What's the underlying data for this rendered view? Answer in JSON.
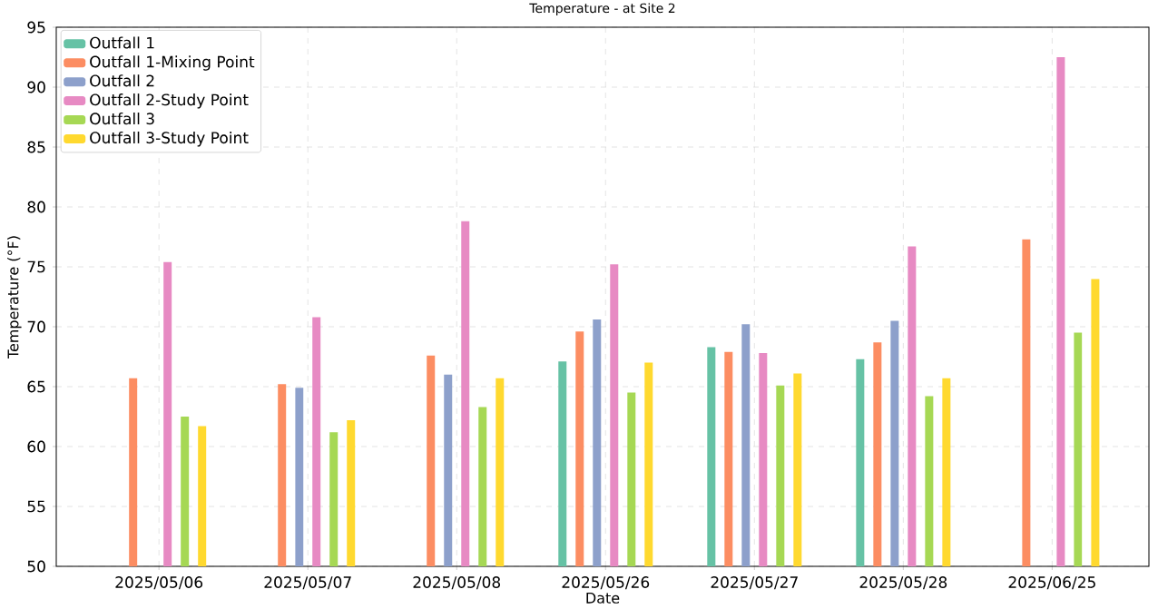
{
  "chart_data": {
    "type": "bar",
    "title": "Temperature - at Site 2",
    "xlabel": "Date",
    "ylabel": "Temperature (°F)",
    "categories": [
      "2025/05/06",
      "2025/05/07",
      "2025/05/08",
      "2025/05/26",
      "2025/05/27",
      "2025/05/28",
      "2025/06/25"
    ],
    "series": [
      {
        "name": "Outfall 1",
        "color": "#66c2a5",
        "values": [
          null,
          null,
          null,
          67.1,
          68.3,
          67.3,
          null
        ]
      },
      {
        "name": "Outfall 1-Mixing Point",
        "color": "#fc8d62",
        "values": [
          65.7,
          65.2,
          67.6,
          69.6,
          67.9,
          68.7,
          77.3
        ]
      },
      {
        "name": "Outfall 2",
        "color": "#8da0cb",
        "values": [
          null,
          64.9,
          66.0,
          70.6,
          70.2,
          70.5,
          null
        ]
      },
      {
        "name": "Outfall 2-Study Point",
        "color": "#e78ac3",
        "values": [
          75.4,
          70.8,
          78.8,
          75.2,
          67.8,
          76.7,
          92.5
        ]
      },
      {
        "name": "Outfall 3",
        "color": "#a6d854",
        "values": [
          62.5,
          61.2,
          63.3,
          64.5,
          65.1,
          64.2,
          69.5
        ]
      },
      {
        "name": "Outfall 3-Study Point",
        "color": "#ffd92f",
        "values": [
          61.7,
          62.2,
          65.7,
          67.0,
          66.1,
          65.7,
          74.0
        ]
      }
    ],
    "ylim": [
      50,
      95
    ],
    "yticks": [
      50,
      55,
      60,
      65,
      70,
      75,
      80,
      85,
      90,
      95
    ],
    "grid": true,
    "legend": "top left"
  }
}
